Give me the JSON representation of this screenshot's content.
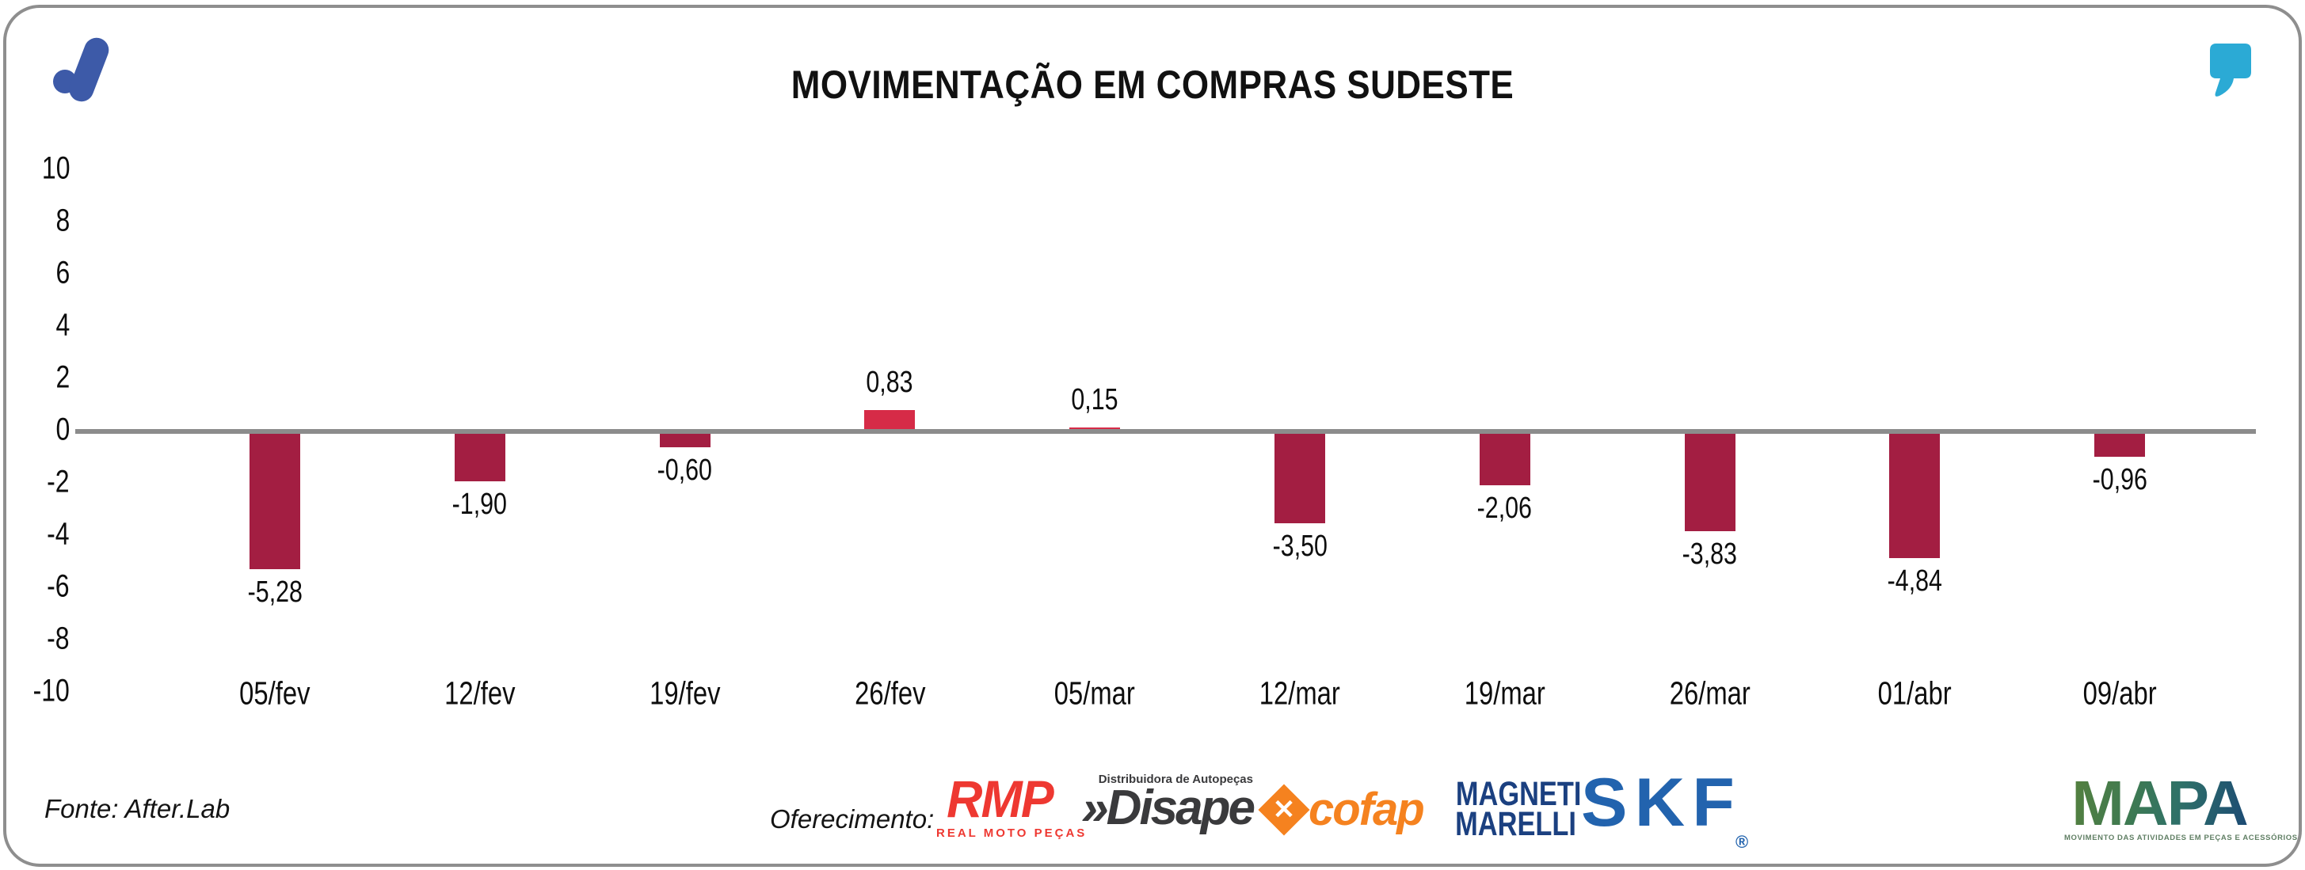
{
  "header": {
    "title": "MOVIMENTAÇÃO EM COMPRAS SUDESTE"
  },
  "chart_data": {
    "type": "bar",
    "title": "MOVIMENTAÇÃO EM COMPRAS SUDESTE",
    "categories": [
      "05/fev",
      "12/fev",
      "19/fev",
      "26/fev",
      "05/mar",
      "12/mar",
      "19/mar",
      "26/mar",
      "01/abr",
      "09/abr"
    ],
    "values": [
      -5.28,
      -1.9,
      -0.6,
      0.83,
      0.15,
      -3.5,
      -2.06,
      -3.83,
      -4.84,
      -0.96
    ],
    "value_labels": [
      "-5,28",
      "-1,90",
      "-0,60",
      "0,83",
      "0,15",
      "-3,50",
      "-2,06",
      "-3,83",
      "-4,84",
      "-0,96"
    ],
    "y_ticks": [
      10,
      8,
      6,
      4,
      2,
      0,
      -2,
      -4,
      -6,
      -8,
      -10
    ],
    "ylim": [
      -10,
      10
    ],
    "xlabel": "",
    "ylabel": "",
    "grid": false,
    "legend": "none",
    "bar_color_negative": "#A31E42",
    "bar_color_positive": "#D62B47",
    "axis_line_color": "#8C8C8C"
  },
  "footer": {
    "source": "Fonte: After.Lab",
    "sponsor_label": "Oferecimento:",
    "logos": {
      "rmp": {
        "text": "RMP",
        "subtext": "REAL MOTO PEÇAS",
        "color": "#EE3831"
      },
      "disape": {
        "chevrons": "»",
        "text": "Disape",
        "subtext": "Distribuidora de Autopeças",
        "color": "#3A3A3C"
      },
      "cofap": {
        "text": "cofap",
        "x_mark": "✕",
        "color": "#F5821F"
      },
      "magneti": {
        "line1": "MAGNETI",
        "line2": "MARELLI",
        "color": "#1B4080"
      },
      "skf": {
        "text": "SKF",
        "reg": "®",
        "color": "#2263AE"
      },
      "mapa": {
        "text": "MAPA",
        "subtext": "MOVIMENTO DAS ATIVIDADES EM PEÇAS E ACESSÓRIOS"
      }
    }
  },
  "colors": {
    "frame": "#8E8E8E",
    "afterlab_blue": "#3D5AA8",
    "quote_teal": "#2BAAD5"
  }
}
